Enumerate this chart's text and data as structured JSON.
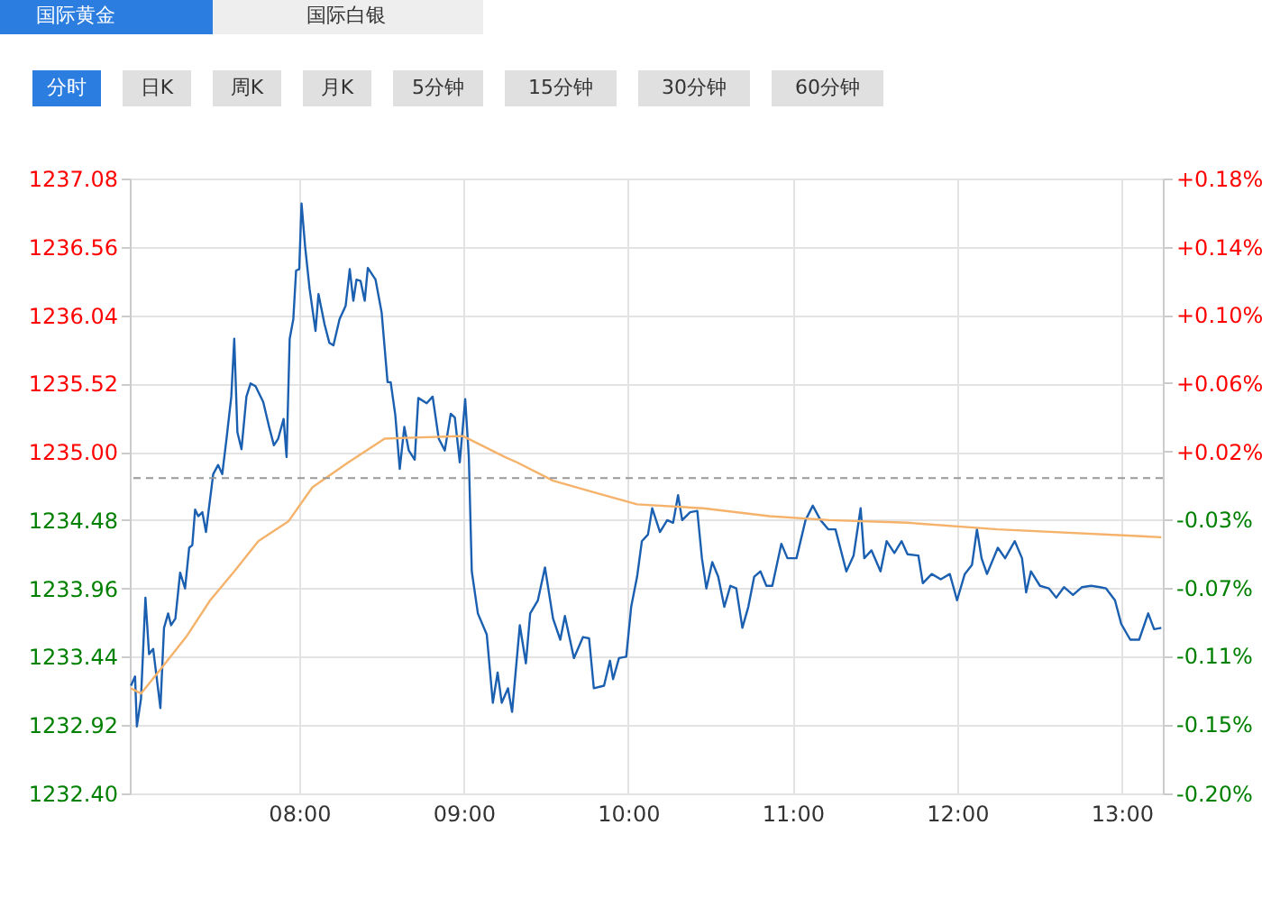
{
  "chart_data": {
    "type": "line",
    "annotations": [
      "国际黄金",
      "国际白银",
      "分时",
      "日K",
      "周K",
      "月K",
      "5分钟",
      "15分钟",
      "30分钟",
      "60分钟"
    ],
    "xlim": [
      6.97,
      13.25
    ],
    "xticks": [
      {
        "value": 8,
        "label": "08:00"
      },
      {
        "value": 9,
        "label": "09:00"
      },
      {
        "value": 10,
        "label": "10:00"
      },
      {
        "value": 11,
        "label": "11:00"
      },
      {
        "value": 12,
        "label": "12:00"
      },
      {
        "value": 13,
        "label": "13:00"
      }
    ],
    "ylim": [
      1232.4,
      1237.08
    ],
    "yticks": [
      {
        "value": 1232.4,
        "label": "1232.40"
      },
      1232.92,
      1233.44,
      1233.96,
      1234.48,
      {
        "value": 1235,
        "label": "1235.00"
      },
      1235.52,
      1236.04,
      1236.56,
      1237.08
    ],
    "y2lim": [
      -0.195,
      0.1846
    ],
    "y2ticks": [
      {
        "value": -0.195,
        "label": "-0.20%"
      },
      {
        "value": -0.1523,
        "label": "-0.15%"
      },
      {
        "value": -0.1101,
        "label": "-0.11%"
      },
      {
        "value": -0.068,
        "label": "-0.07%"
      },
      {
        "value": -0.0259,
        "label": "-0.03%"
      },
      {
        "value": 0.0162,
        "label": "+0.02%"
      },
      {
        "value": 0.0583,
        "label": "+0.06%"
      },
      {
        "value": 0.1004,
        "label": "+0.10%"
      },
      {
        "value": 0.1425,
        "label": "+0.14%"
      },
      {
        "value": 0.1846,
        "label": "+0.18%"
      }
    ],
    "grid": true,
    "ref_lines": [
      {
        "axis": "y",
        "value": 1234.8,
        "color": "#999999",
        "line_style": "dashed"
      }
    ],
    "series": [
      {
        "color": "#1a5fb0",
        "x": [
          6.977,
          7.002,
          7.013,
          7.038,
          7.065,
          7.087,
          7.112,
          7.156,
          7.178,
          7.203,
          7.221,
          7.247,
          7.276,
          7.306,
          7.331,
          7.35,
          7.367,
          7.386,
          7.411,
          7.433,
          7.477,
          7.507,
          7.532,
          7.558,
          7.587,
          7.605,
          7.624,
          7.649,
          7.679,
          7.704,
          7.734,
          7.781,
          7.817,
          7.846,
          7.872,
          7.905,
          7.923,
          7.942,
          7.964,
          7.981,
          8.0,
          8.014,
          8.036,
          8.063,
          8.099,
          8.117,
          8.154,
          8.183,
          8.208,
          8.245,
          8.282,
          8.307,
          8.329,
          8.348,
          8.373,
          8.398,
          8.417,
          8.464,
          8.501,
          8.537,
          8.556,
          8.584,
          8.611,
          8.639,
          8.666,
          8.702,
          8.724,
          8.775,
          8.811,
          8.848,
          8.885,
          8.921,
          8.946,
          8.976,
          9.009,
          9.031,
          9.049,
          9.086,
          9.14,
          9.177,
          9.206,
          9.231,
          9.269,
          9.294,
          9.341,
          9.378,
          9.404,
          9.451,
          9.494,
          9.543,
          9.587,
          9.615,
          9.67,
          9.725,
          9.762,
          9.791,
          9.853,
          9.889,
          9.908,
          9.944,
          9.988,
          10.018,
          10.054,
          10.083,
          10.12,
          10.146,
          10.193,
          10.237,
          10.273,
          10.303,
          10.328,
          10.376,
          10.42,
          10.448,
          10.475,
          10.511,
          10.547,
          10.584,
          10.621,
          10.657,
          10.694,
          10.73,
          10.766,
          10.804,
          10.84,
          10.876,
          10.931,
          10.968,
          11.023,
          11.078,
          11.122,
          11.169,
          11.216,
          11.26,
          11.326,
          11.37,
          11.413,
          11.435,
          11.479,
          11.534,
          11.571,
          11.618,
          11.662,
          11.698,
          11.764,
          11.791,
          11.845,
          11.9,
          11.955,
          11.999,
          12.046,
          12.09,
          12.12,
          12.148,
          12.181,
          12.247,
          12.291,
          12.35,
          12.394,
          12.419,
          12.448,
          12.503,
          12.558,
          12.602,
          12.649,
          12.704,
          12.759,
          12.814,
          12.868,
          12.905,
          12.959,
          12.997,
          13.052,
          13.106,
          13.161,
          13.197,
          13.241
        ],
        "values": [
          1233.22,
          1233.29,
          1232.91,
          1233.12,
          1233.89,
          1233.46,
          1233.5,
          1233.05,
          1233.66,
          1233.77,
          1233.68,
          1233.73,
          1234.08,
          1233.96,
          1234.27,
          1234.29,
          1234.56,
          1234.51,
          1234.54,
          1234.39,
          1234.83,
          1234.9,
          1234.83,
          1235.1,
          1235.42,
          1235.86,
          1235.15,
          1235.02,
          1235.42,
          1235.52,
          1235.5,
          1235.38,
          1235.19,
          1235.05,
          1235.1,
          1235.25,
          1234.96,
          1235.86,
          1236.01,
          1236.38,
          1236.39,
          1236.89,
          1236.56,
          1236.24,
          1235.92,
          1236.2,
          1235.97,
          1235.83,
          1235.81,
          1236.01,
          1236.11,
          1236.39,
          1236.15,
          1236.31,
          1236.3,
          1236.15,
          1236.4,
          1236.31,
          1236.06,
          1235.53,
          1235.53,
          1235.28,
          1234.87,
          1235.19,
          1235.01,
          1234.94,
          1235.41,
          1235.37,
          1235.42,
          1235.1,
          1235.01,
          1235.29,
          1235.26,
          1234.92,
          1235.4,
          1234.96,
          1234.09,
          1233.77,
          1233.61,
          1233.09,
          1233.32,
          1233.09,
          1233.2,
          1233.02,
          1233.68,
          1233.39,
          1233.77,
          1233.87,
          1234.12,
          1233.73,
          1233.57,
          1233.75,
          1233.43,
          1233.59,
          1233.58,
          1233.2,
          1233.22,
          1233.41,
          1233.27,
          1233.43,
          1233.44,
          1233.82,
          1234.05,
          1234.32,
          1234.37,
          1234.57,
          1234.39,
          1234.48,
          1234.46,
          1234.67,
          1234.48,
          1234.54,
          1234.55,
          1234.19,
          1233.96,
          1234.16,
          1234.05,
          1233.82,
          1233.98,
          1233.96,
          1233.66,
          1233.82,
          1234.05,
          1234.09,
          1233.98,
          1233.98,
          1234.3,
          1234.19,
          1234.19,
          1234.48,
          1234.59,
          1234.48,
          1234.41,
          1234.41,
          1234.09,
          1234.21,
          1234.57,
          1234.19,
          1234.25,
          1234.09,
          1234.32,
          1234.23,
          1234.32,
          1234.22,
          1234.21,
          1234.0,
          1234.07,
          1234.03,
          1234.07,
          1233.87,
          1234.07,
          1234.14,
          1234.41,
          1234.19,
          1234.07,
          1234.27,
          1234.19,
          1234.32,
          1234.19,
          1233.93,
          1234.09,
          1233.98,
          1233.96,
          1233.89,
          1233.97,
          1233.91,
          1233.97,
          1233.98,
          1233.97,
          1233.96,
          1233.87,
          1233.69,
          1233.57,
          1233.57,
          1233.77,
          1233.65,
          1233.66
        ]
      },
      {
        "color": "#f5b26b",
        "x": [
          6.977,
          7.038,
          7.167,
          7.312,
          7.459,
          7.605,
          7.751,
          7.934,
          8.08,
          8.299,
          8.519,
          8.738,
          8.995,
          9.25,
          9.323,
          9.543,
          9.798,
          10.054,
          10.456,
          10.859,
          11.224,
          11.698,
          12.247,
          13.241
        ],
        "values": [
          1233.2,
          1233.16,
          1233.36,
          1233.59,
          1233.87,
          1234.09,
          1234.32,
          1234.47,
          1234.73,
          1234.92,
          1235.1,
          1235.11,
          1235.12,
          1234.96,
          1234.92,
          1234.78,
          1234.69,
          1234.6,
          1234.57,
          1234.51,
          1234.48,
          1234.46,
          1234.41,
          1234.35
        ]
      }
    ]
  }
}
